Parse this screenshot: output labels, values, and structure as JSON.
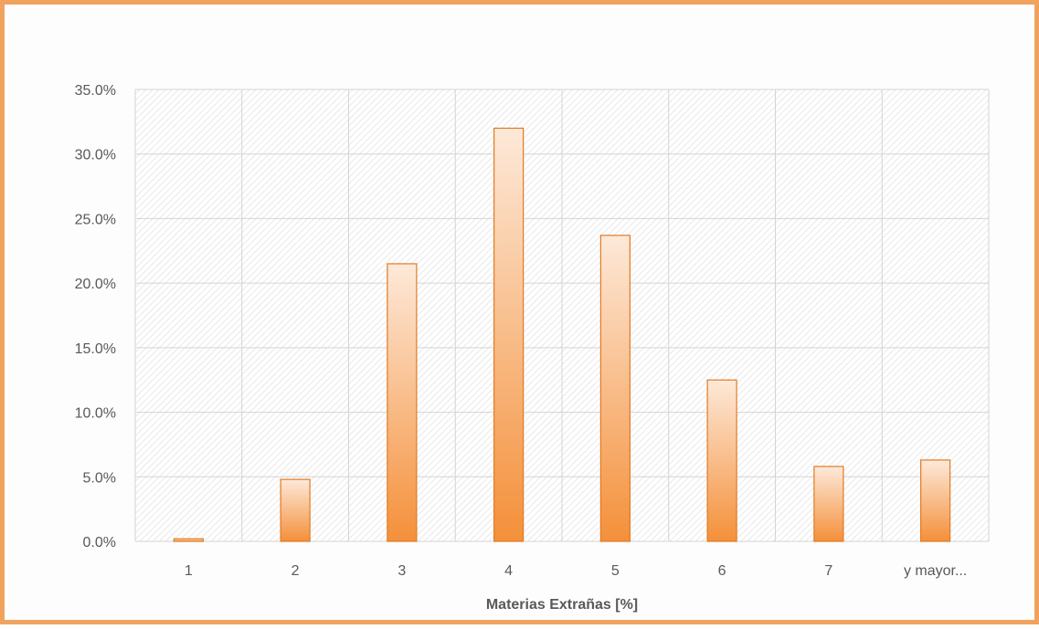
{
  "chart_data": {
    "type": "bar",
    "categories": [
      "1",
      "2",
      "3",
      "4",
      "5",
      "6",
      "7",
      "y mayor..."
    ],
    "values": [
      0.2,
      4.8,
      21.5,
      32.0,
      23.7,
      12.5,
      5.8,
      6.3
    ],
    "y_tick_labels": [
      "0.0%",
      "5.0%",
      "10.0%",
      "15.0%",
      "20.0%",
      "25.0%",
      "30.0%",
      "35.0%"
    ],
    "ylim": [
      0,
      35
    ],
    "y_unit": "%",
    "xlabel": "Materias Extrañas [%]",
    "ylabel": "",
    "title": "",
    "grid": true,
    "legend": "none",
    "colors": {
      "frame_border": "#f0a35e",
      "bar_top": "#fde9d9",
      "bar_bottom": "#f4903a",
      "bar_outline": "#e07b24",
      "grid": "#d4d4d4",
      "plot_hatch": "#e6e6e6"
    }
  }
}
